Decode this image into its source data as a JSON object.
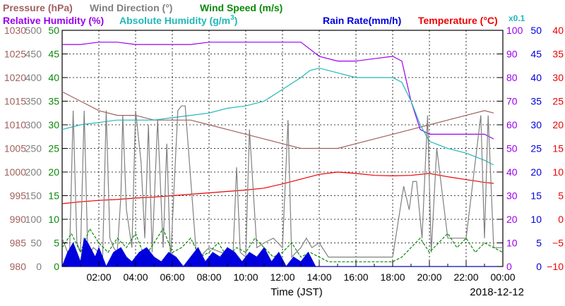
{
  "legend": {
    "pressure": {
      "label": "Pressure (hPa)",
      "color": "#a0615e"
    },
    "wind_dir": {
      "label": "Wind Direction (°)",
      "color": "#808080"
    },
    "wind_speed": {
      "label": "Wind Speed (m/s)",
      "color": "#0a8a0a"
    },
    "rel_humidity": {
      "label": "Relative Humidity (%)",
      "color": "#9900ee"
    },
    "abs_humidity_pre": "Absolute Humidity (g/m",
    "abs_humidity_sup": "3",
    "abs_humidity_post": ")",
    "abs_humidity_color": "#20b8b8",
    "abs_humidity_scale": "x0.1",
    "rain_rate": {
      "label": "Rain Rate(mm/h)",
      "color": "#0000dd"
    },
    "temperature": {
      "label": "Temperature (°C)",
      "color": "#ee0000"
    }
  },
  "chart_data": {
    "type": "line",
    "title": "",
    "xlabel": "Time (JST)",
    "date_label": "2018-12-12",
    "x_ticks": [
      "02:00",
      "04:00",
      "06:00",
      "08:00",
      "10:00",
      "12:00",
      "14:00",
      "16:00",
      "18:00",
      "20:00",
      "22:00",
      "00:00"
    ],
    "x_range_hours": [
      0,
      24
    ],
    "grid": true,
    "axes": {
      "pressure": {
        "ticks": [
          "980",
          "985",
          "990",
          "995",
          "1000",
          "1005",
          "1010",
          "1015",
          "1020",
          "1025",
          "1030"
        ],
        "range": [
          980,
          1030
        ],
        "color": "#a0615e"
      },
      "wind_dir": {
        "ticks": [
          "0",
          "50",
          "100",
          "150",
          "200",
          "250",
          "300",
          "350",
          "400",
          "450",
          "500"
        ],
        "range": [
          0,
          500
        ],
        "color": "#808080"
      },
      "wind_speed": {
        "ticks": [
          "0",
          "5",
          "10",
          "15",
          "20",
          "25",
          "30",
          "35",
          "40",
          "45",
          "50"
        ],
        "range": [
          0,
          50
        ],
        "color": "#0a8a0a"
      },
      "rel_humidity": {
        "ticks": [
          "0",
          "10",
          "20",
          "30",
          "40",
          "50",
          "60",
          "70",
          "80",
          "90",
          "100"
        ],
        "range": [
          0,
          100
        ],
        "color": "#9900ee"
      },
      "rain_rate": {
        "ticks": [
          "0",
          "5",
          "10",
          "15",
          "20",
          "25",
          "30",
          "35",
          "40",
          "45",
          "50"
        ],
        "range": [
          0,
          50
        ],
        "color": "#0000dd"
      },
      "temperature": {
        "ticks": [
          "−10",
          "−5",
          "0",
          "5",
          "10",
          "15",
          "20",
          "25",
          "30",
          "35",
          "40"
        ],
        "range": [
          -10,
          40
        ],
        "color": "#ee0000"
      }
    },
    "series": [
      {
        "name": "Pressure (hPa)",
        "axis": "pressure",
        "color": "#a0615e",
        "x": [
          0,
          1,
          2,
          3,
          4,
          5,
          6,
          7,
          8,
          9,
          10,
          11,
          12,
          13,
          14,
          15,
          16,
          17,
          18,
          19,
          20,
          21,
          22,
          23,
          23.5
        ],
        "y": [
          1017,
          1015,
          1013,
          1012,
          1012,
          1011,
          1011,
          1011,
          1010,
          1009,
          1008,
          1007,
          1006,
          1005,
          1005,
          1005,
          1006,
          1007,
          1008,
          1009,
          1010,
          1011,
          1012,
          1013,
          1012.5
        ]
      },
      {
        "name": "Relative Humidity (%)",
        "axis": "rel_humidity",
        "color": "#9900ee",
        "x": [
          0,
          1,
          2,
          3,
          4,
          5,
          6,
          7,
          8,
          9,
          10,
          11,
          12,
          13,
          13.5,
          14,
          15,
          16,
          17,
          18,
          18.5,
          19,
          19.5,
          20,
          21,
          22,
          23,
          23.5
        ],
        "y": [
          94,
          94,
          95,
          95,
          94,
          94,
          94,
          94,
          95,
          95,
          95,
          95,
          95,
          95,
          92,
          89,
          87,
          87,
          88,
          89,
          87,
          70,
          58,
          56,
          56,
          56,
          56,
          54
        ]
      },
      {
        "name": "Absolute Humidity (g/m3) x0.1",
        "axis": "rel_humidity",
        "color": "#20b8b8",
        "x": [
          0,
          1,
          2,
          3,
          4,
          5,
          6,
          7,
          8,
          9,
          10,
          11,
          12,
          13,
          13.5,
          14,
          15,
          16,
          17,
          18,
          18.5,
          19,
          19.5,
          20,
          21,
          22,
          23,
          23.5
        ],
        "y": [
          58,
          60,
          61,
          62,
          62,
          62,
          63,
          64,
          65,
          67,
          68,
          70,
          75,
          80,
          83,
          84,
          82,
          80,
          80,
          80,
          78,
          70,
          60,
          53,
          50,
          48,
          45,
          43
        ]
      },
      {
        "name": "Temperature (°C)",
        "axis": "temperature",
        "color": "#ee0000",
        "x": [
          0,
          1,
          2,
          3,
          4,
          5,
          6,
          7,
          8,
          9,
          10,
          11,
          12,
          13,
          14,
          15,
          16,
          17,
          18,
          19,
          20,
          21,
          22,
          23,
          23.5
        ],
        "y": [
          3.3,
          3.7,
          4,
          4.2,
          4.5,
          4.7,
          5,
          5.3,
          5.6,
          5.9,
          6.2,
          6.6,
          7.5,
          8.5,
          9.5,
          10,
          9.7,
          9.3,
          9.2,
          9.3,
          9.7,
          9,
          8.4,
          7.8,
          7.6
        ]
      },
      {
        "name": "Wind Direction (°)",
        "axis": "wind_dir",
        "color": "#808080",
        "x": [
          0,
          0.4,
          0.6,
          0.8,
          1.0,
          1.2,
          1.4,
          1.7,
          2.0,
          2.2,
          2.4,
          2.6,
          2.8,
          3.0,
          3.2,
          3.3,
          3.5,
          3.8,
          4.0,
          4.3,
          4.5,
          4.7,
          4.9,
          5.2,
          5.5,
          5.7,
          5.9,
          6.3,
          6.5,
          6.7,
          7.3,
          7.5,
          8,
          9.3,
          9.5,
          9.7,
          10,
          10.2,
          10.6,
          11,
          11.5,
          12,
          12.3,
          12.5,
          13,
          13.3,
          13.6,
          14,
          14.5,
          15,
          16,
          17,
          18,
          18.6,
          18.9,
          19.1,
          19.3,
          19.6,
          19.9,
          20.1,
          20.4,
          21,
          22,
          22.8,
          23.0,
          23.2,
          23.5,
          24
        ],
        "y": [
          60,
          20,
          330,
          50,
          30,
          330,
          20,
          40,
          30,
          10,
          330,
          60,
          40,
          30,
          150,
          320,
          120,
          40,
          330,
          220,
          60,
          300,
          30,
          310,
          40,
          260,
          10,
          330,
          340,
          340,
          30,
          20,
          40,
          20,
          210,
          30,
          20,
          290,
          40,
          50,
          60,
          40,
          310,
          20,
          40,
          60,
          40,
          50,
          20,
          20,
          20,
          20,
          20,
          170,
          120,
          180,
          180,
          60,
          320,
          30,
          250,
          60,
          60,
          320,
          60,
          320,
          40,
          40
        ]
      },
      {
        "name": "Wind Speed (m/s)",
        "axis": "wind_speed",
        "color": "#0a8a0a",
        "x": [
          0,
          0.5,
          1,
          1.5,
          2,
          2.5,
          3,
          3.5,
          4,
          4.5,
          5,
          5.5,
          6,
          6.5,
          7,
          7.5,
          8,
          8.5,
          9,
          9.5,
          10,
          10.5,
          11,
          11.5,
          12,
          12.5,
          13,
          13.5,
          14,
          14.5,
          15,
          16,
          17,
          18,
          18.5,
          19,
          19.5,
          20,
          20.5,
          21,
          21.5,
          22,
          22.5,
          23,
          23.5,
          24
        ],
        "y": [
          4,
          7,
          3,
          8,
          5,
          3,
          6,
          4,
          7,
          2,
          5,
          8,
          3,
          4,
          6,
          2,
          3,
          5,
          2,
          4,
          3,
          6,
          4,
          2,
          3,
          5,
          2,
          3,
          2,
          1,
          1,
          1,
          1,
          1,
          2,
          4,
          6,
          3,
          5,
          7,
          4,
          6,
          3,
          5,
          4,
          3
        ]
      },
      {
        "name": "Rain Rate(mm/h)",
        "axis": "rain_rate",
        "color": "#0000dd",
        "type": "area",
        "x": [
          0,
          0.3,
          0.6,
          1.0,
          1.2,
          1.4,
          1.8,
          2.0,
          2.4,
          2.8,
          3.2,
          3.5,
          3.8,
          4.2,
          4.6,
          5.0,
          5.4,
          5.8,
          6.2,
          6.6,
          7.0,
          7.4,
          7.8,
          8.2,
          8.6,
          9.0,
          9.4,
          9.8,
          10.2,
          10.6,
          11.0,
          11.4,
          11.8,
          12.2,
          12.6,
          13.0,
          13.4,
          13.8,
          14,
          24
        ],
        "y": [
          0,
          3,
          5,
          1,
          6,
          5,
          2,
          4,
          0,
          3,
          4,
          2,
          1,
          3,
          4,
          2,
          1,
          3,
          2,
          0,
          2,
          4,
          1,
          3,
          2,
          4,
          3,
          1,
          3,
          2,
          4,
          1,
          3,
          0,
          2,
          1,
          3,
          0,
          0,
          0
        ]
      }
    ]
  }
}
